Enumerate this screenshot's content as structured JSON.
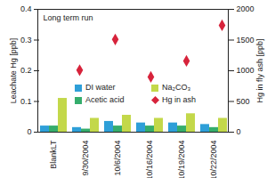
{
  "chart_data": {
    "type": "bar",
    "categories": [
      "BlankLT",
      "9/30/2004",
      "10/6/2004",
      "10/16/2004",
      "10/19/2004",
      "10/22/2004"
    ],
    "series": [
      {
        "name": "DI water",
        "color": "#2e9fd8",
        "type": "bar",
        "values": [
          0.02,
          0.015,
          0.035,
          0.03,
          0.03,
          0.025
        ]
      },
      {
        "name": "Acetic acid",
        "color": "#35ad6c",
        "type": "bar",
        "values": [
          0.02,
          0.01,
          0.02,
          0.02,
          0.02,
          0.015
        ]
      },
      {
        "name": "Na₂CO₃",
        "color": "#c3d84a",
        "type": "bar",
        "values": [
          0.11,
          0.045,
          0.055,
          0.045,
          0.06,
          0.045
        ]
      },
      {
        "name": "Hg in ash",
        "color": "#d7233b",
        "type": "scatter",
        "marker": "diamond",
        "axis": "y2",
        "values": [
          null,
          1010,
          1510,
          900,
          1160,
          1740
        ]
      }
    ],
    "ylabel": "Leachate Hg [ppb]",
    "y2label": "Hg in fly ash [ppb]",
    "ylim": [
      0,
      0.4
    ],
    "yticks": [
      0,
      0.1,
      0.2,
      0.3,
      0.4
    ],
    "y2lim": [
      0,
      2000
    ],
    "y2ticks": [
      0,
      500,
      1000,
      1500,
      2000
    ],
    "annotation": "Long term run",
    "legend": "right",
    "grid": false
  }
}
